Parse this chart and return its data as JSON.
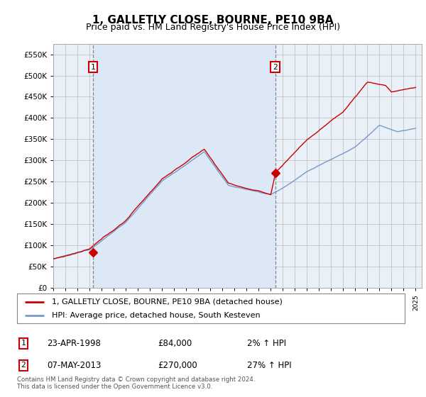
{
  "title": "1, GALLETLY CLOSE, BOURNE, PE10 9BA",
  "subtitle": "Price paid vs. HM Land Registry's House Price Index (HPI)",
  "legend_line1": "1, GALLETLY CLOSE, BOURNE, PE10 9BA (detached house)",
  "legend_line2": "HPI: Average price, detached house, South Kesteven",
  "annotation1_label": "1",
  "annotation1_date": "23-APR-1998",
  "annotation1_price": "£84,000",
  "annotation1_hpi": "2% ↑ HPI",
  "annotation1_year": 1998.31,
  "annotation1_value": 84000,
  "annotation2_label": "2",
  "annotation2_date": "07-MAY-2013",
  "annotation2_price": "£270,000",
  "annotation2_hpi": "27% ↑ HPI",
  "annotation2_year": 2013.37,
  "annotation2_value": 270000,
  "footer": "Contains HM Land Registry data © Crown copyright and database right 2024.\nThis data is licensed under the Open Government Licence v3.0.",
  "red_color": "#cc0000",
  "blue_color": "#7799cc",
  "shade_color": "#dce8f5",
  "plot_bg": "#eaf0f8",
  "title_fontsize": 11,
  "subtitle_fontsize": 9,
  "ylim_min": 0,
  "ylim_max": 575000,
  "xlim_start": 1995.0,
  "xlim_end": 2025.5,
  "yticks": [
    0,
    50000,
    100000,
    150000,
    200000,
    250000,
    300000,
    350000,
    400000,
    450000,
    500000,
    550000
  ],
  "ylabels": [
    "£0",
    "£50K",
    "£100K",
    "£150K",
    "£200K",
    "£250K",
    "£300K",
    "£350K",
    "£400K",
    "£450K",
    "£500K",
    "£550K"
  ]
}
